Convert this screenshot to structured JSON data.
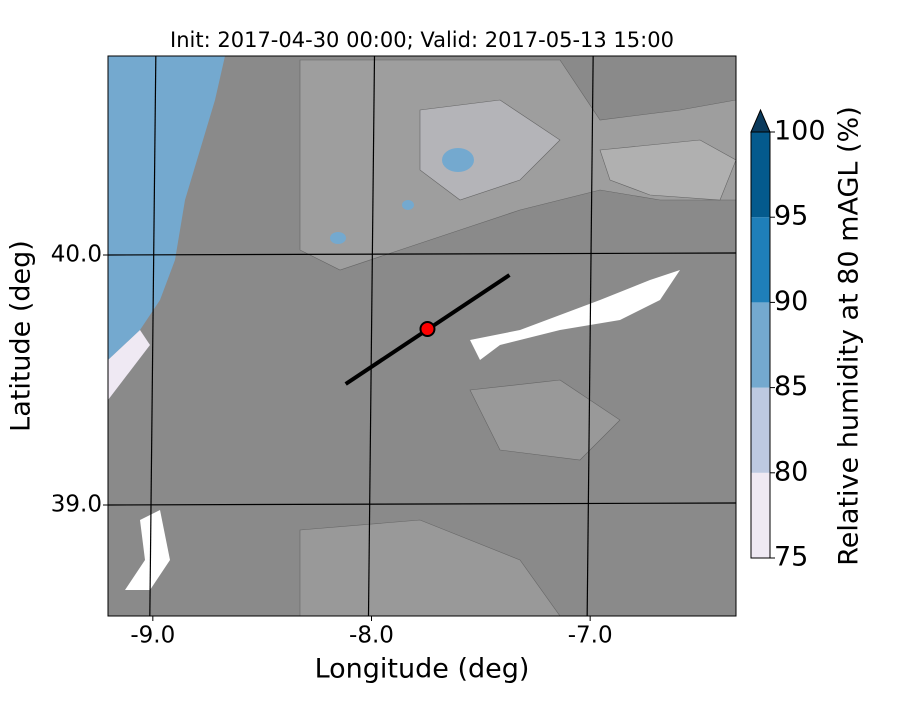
{
  "map": {
    "title": "Init: 2017-04-30 00:00; Valid: 2017-05-13 15:00",
    "x_label": "Longitude (deg)",
    "y_label": "Latitude (deg)",
    "xlim": [
      -9.205,
      -6.333
    ],
    "ylim": [
      38.556,
      40.796
    ],
    "xticks": [
      {
        "value": -9,
        "label": "-9.0"
      },
      {
        "value": -8,
        "label": "-8.0"
      },
      {
        "value": -7,
        "label": "-7.0"
      }
    ],
    "yticks": [
      {
        "value": 39,
        "label": "39.0"
      },
      {
        "value": 40,
        "label": "40.0"
      }
    ],
    "cross_section": {
      "lon": [
        -8.118,
        -7.369
      ],
      "lat": [
        39.484,
        39.92
      ]
    },
    "site": {
      "lon": -7.744,
      "lat": 39.704,
      "color": "#ff0000"
    },
    "colorbar": {
      "label": "Relative humidity at 80 mAGL (%)",
      "ticks": [
        75,
        80,
        85,
        90,
        95,
        100
      ],
      "colors": [
        "#efe9f3",
        "#bdc9e1",
        "#74a9cf",
        "#1f7fb9",
        "#045a8d"
      ],
      "extend_color": "#0b3a5c"
    }
  }
}
